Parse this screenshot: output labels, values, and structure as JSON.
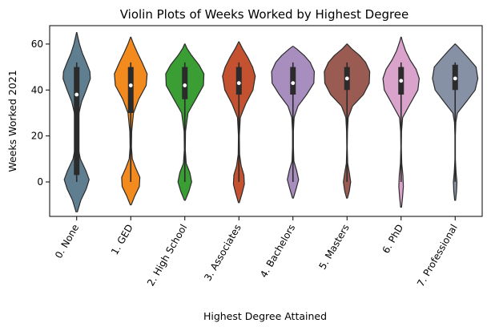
{
  "chart_data": {
    "type": "violin",
    "title": "Violin Plots of Weeks Worked by Highest Degree",
    "xlabel": "Highest Degree Attained",
    "ylabel": "Weeks Worked 2021",
    "ylim": [
      -15,
      68
    ],
    "yticks": [
      0,
      20,
      40,
      60
    ],
    "categories": [
      "0. None",
      "1. GED",
      "2. High School",
      "3. Associates",
      "4. Bachelors",
      "5. Masters",
      "6. PhD",
      "7. Professional"
    ],
    "colors": [
      "#5f7f91",
      "#f28a1e",
      "#3a9e35",
      "#c4512f",
      "#a88ebf",
      "#9a5b52",
      "#d9a3cc",
      "#8791a6"
    ],
    "violins": [
      {
        "ymin": -13,
        "ymax": 65,
        "q1": 3,
        "median": 38,
        "q3": 50,
        "whisker_low": 0,
        "whisker_high": 52,
        "profile": [
          [
            -13,
            0.03
          ],
          [
            -8,
            0.18
          ],
          [
            -3,
            0.42
          ],
          [
            1,
            0.55
          ],
          [
            5,
            0.4
          ],
          [
            10,
            0.16
          ],
          [
            15,
            0.06
          ],
          [
            22,
            0.04
          ],
          [
            30,
            0.1
          ],
          [
            35,
            0.22
          ],
          [
            40,
            0.42
          ],
          [
            45,
            0.6
          ],
          [
            48,
            0.58
          ],
          [
            52,
            0.42
          ],
          [
            56,
            0.25
          ],
          [
            60,
            0.12
          ],
          [
            63,
            0.05
          ],
          [
            65,
            0.01
          ]
        ]
      },
      {
        "ymin": -10,
        "ymax": 63,
        "q1": 30,
        "median": 42,
        "q3": 50,
        "whisker_low": 0,
        "whisker_high": 52,
        "profile": [
          [
            -10,
            0.02
          ],
          [
            -6,
            0.18
          ],
          [
            -2,
            0.38
          ],
          [
            2,
            0.4
          ],
          [
            6,
            0.22
          ],
          [
            10,
            0.07
          ],
          [
            15,
            0.03
          ],
          [
            22,
            0.04
          ],
          [
            30,
            0.12
          ],
          [
            36,
            0.35
          ],
          [
            42,
            0.68
          ],
          [
            47,
            0.72
          ],
          [
            52,
            0.5
          ],
          [
            56,
            0.3
          ],
          [
            60,
            0.12
          ],
          [
            63,
            0.01
          ]
        ]
      },
      {
        "ymin": -8,
        "ymax": 60,
        "q1": 36,
        "median": 42,
        "q3": 50,
        "whisker_low": 0,
        "whisker_high": 52,
        "profile": [
          [
            -8,
            0.02
          ],
          [
            -4,
            0.18
          ],
          [
            0,
            0.3
          ],
          [
            4,
            0.22
          ],
          [
            8,
            0.06
          ],
          [
            14,
            0.02
          ],
          [
            22,
            0.03
          ],
          [
            30,
            0.14
          ],
          [
            36,
            0.48
          ],
          [
            42,
            0.82
          ],
          [
            47,
            0.84
          ],
          [
            51,
            0.62
          ],
          [
            55,
            0.3
          ],
          [
            58,
            0.1
          ],
          [
            60,
            0.01
          ]
        ]
      },
      {
        "ymin": -9,
        "ymax": 61,
        "q1": 38,
        "median": 43,
        "q3": 50,
        "whisker_low": 0,
        "whisker_high": 52,
        "profile": [
          [
            -9,
            0.02
          ],
          [
            -5,
            0.14
          ],
          [
            -1,
            0.24
          ],
          [
            3,
            0.22
          ],
          [
            7,
            0.1
          ],
          [
            12,
            0.03
          ],
          [
            20,
            0.02
          ],
          [
            28,
            0.06
          ],
          [
            34,
            0.3
          ],
          [
            40,
            0.62
          ],
          [
            46,
            0.72
          ],
          [
            50,
            0.6
          ],
          [
            54,
            0.4
          ],
          [
            58,
            0.16
          ],
          [
            61,
            0.01
          ]
        ]
      },
      {
        "ymin": -7,
        "ymax": 59,
        "q1": 38,
        "median": 43,
        "q3": 50,
        "whisker_low": 0,
        "whisker_high": 52,
        "profile": [
          [
            -7,
            0.02
          ],
          [
            -3,
            0.14
          ],
          [
            1,
            0.25
          ],
          [
            5,
            0.16
          ],
          [
            9,
            0.04
          ],
          [
            15,
            0.02
          ],
          [
            22,
            0.02
          ],
          [
            28,
            0.05
          ],
          [
            33,
            0.22
          ],
          [
            38,
            0.6
          ],
          [
            43,
            0.92
          ],
          [
            48,
            0.94
          ],
          [
            52,
            0.76
          ],
          [
            55,
            0.5
          ],
          [
            58,
            0.15
          ],
          [
            59,
            0.01
          ]
        ]
      },
      {
        "ymin": -7,
        "ymax": 60,
        "q1": 40,
        "median": 45,
        "q3": 50,
        "whisker_low": 0,
        "whisker_high": 52,
        "profile": [
          [
            -7,
            0.02
          ],
          [
            -4,
            0.1
          ],
          [
            0,
            0.16
          ],
          [
            4,
            0.1
          ],
          [
            8,
            0.03
          ],
          [
            15,
            0.01
          ],
          [
            22,
            0.02
          ],
          [
            28,
            0.05
          ],
          [
            33,
            0.24
          ],
          [
            38,
            0.72
          ],
          [
            43,
            0.98
          ],
          [
            48,
            1.0
          ],
          [
            52,
            0.82
          ],
          [
            55,
            0.56
          ],
          [
            58,
            0.2
          ],
          [
            60,
            0.01
          ]
        ]
      },
      {
        "ymin": -11,
        "ymax": 63,
        "q1": 38,
        "median": 44,
        "q3": 50,
        "whisker_low": 0,
        "whisker_high": 52,
        "profile": [
          [
            -11,
            0.02
          ],
          [
            -7,
            0.06
          ],
          [
            -2,
            0.1
          ],
          [
            3,
            0.08
          ],
          [
            8,
            0.03
          ],
          [
            15,
            0.01
          ],
          [
            22,
            0.02
          ],
          [
            28,
            0.07
          ],
          [
            34,
            0.4
          ],
          [
            40,
            0.74
          ],
          [
            45,
            0.8
          ],
          [
            49,
            0.66
          ],
          [
            53,
            0.4
          ],
          [
            57,
            0.2
          ],
          [
            61,
            0.06
          ],
          [
            63,
            0.01
          ]
        ]
      },
      {
        "ymin": -8,
        "ymax": 60,
        "q1": 40,
        "median": 45,
        "q3": 51,
        "whisker_low": 0,
        "whisker_high": 52,
        "profile": [
          [
            -8,
            0.02
          ],
          [
            -4,
            0.06
          ],
          [
            0,
            0.08
          ],
          [
            4,
            0.04
          ],
          [
            10,
            0.01
          ],
          [
            20,
            0.01
          ],
          [
            26,
            0.03
          ],
          [
            30,
            0.1
          ],
          [
            35,
            0.5
          ],
          [
            40,
            0.88
          ],
          [
            45,
            1.0
          ],
          [
            50,
            0.92
          ],
          [
            53,
            0.66
          ],
          [
            57,
            0.3
          ],
          [
            60,
            0.01
          ]
        ]
      }
    ],
    "grid": false,
    "legend": "none"
  }
}
